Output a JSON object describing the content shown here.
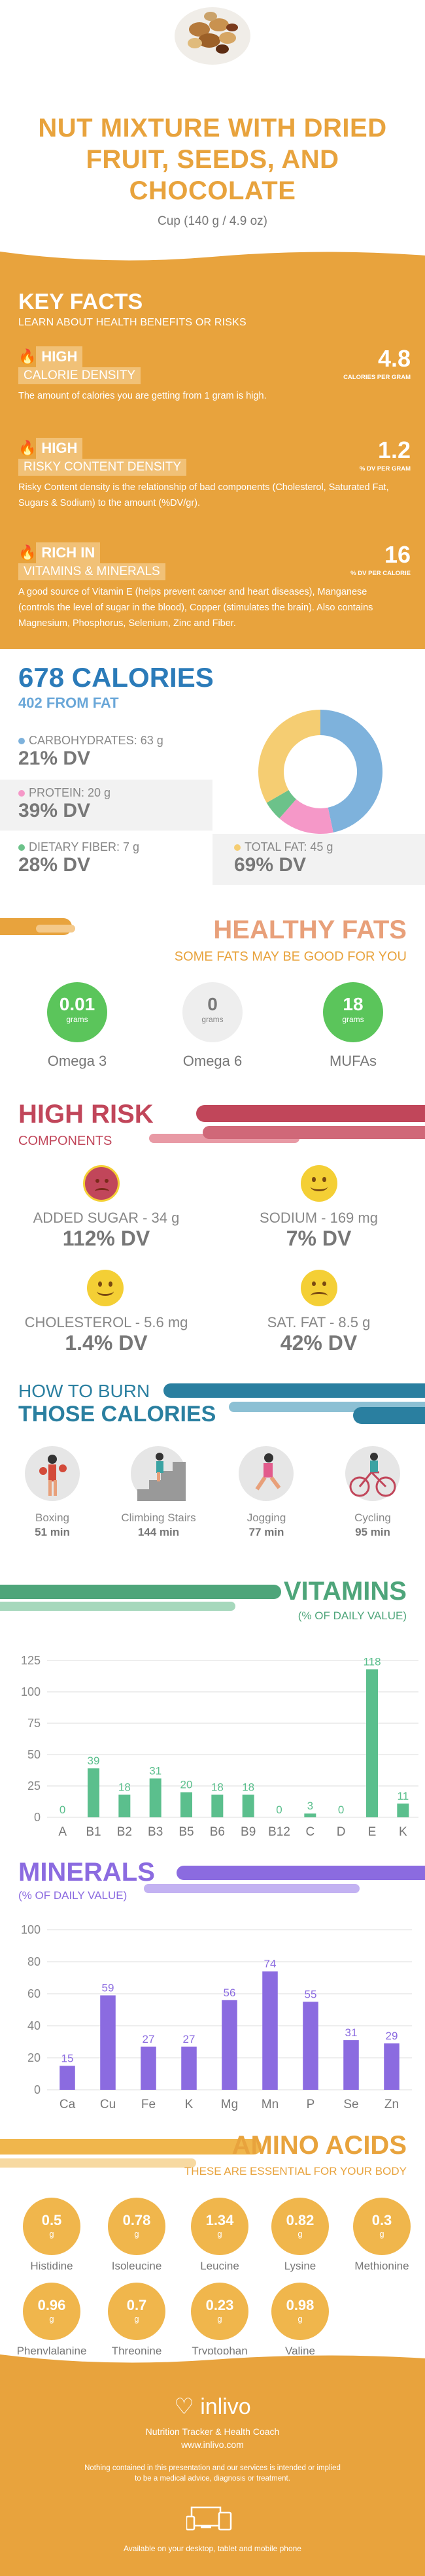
{
  "header": {
    "title_lines": [
      "NUT MIXTURE WITH DRIED",
      "FRUIT, SEEDS, AND",
      "CHOCOLATE"
    ],
    "serving": "Cup (140 g / 4.9 oz)"
  },
  "key_facts": {
    "title": "KEY FACTS",
    "subtitle": "LEARN ABOUT HEALTH BENEFITS OR RISKS",
    "items": [
      {
        "level": "HIGH",
        "label": "CALORIE DENSITY",
        "desc": "The amount of calories you are getting from 1 gram is high.",
        "value": "4.8",
        "unit": "CALORIES PER GRAM"
      },
      {
        "level": "HIGH",
        "label": "RISKY CONTENT DENSITY",
        "desc": "Risky Content density is the relationship of bad components (Cholesterol, Saturated Fat, Sugars & Sodium) to the amount (%DV/gr).",
        "value": "1.2",
        "unit": "% DV PER GRAM"
      },
      {
        "level": "RICH  IN",
        "label": "VITAMINS & MINERALS",
        "desc": "A good source of Vitamin E (helps prevent cancer and heart diseases), Manganese (controls the level of sugar in the blood), Copper (stimulates the brain). Also contains Magnesium, Phosphorus, Selenium, Zinc and Fiber.",
        "value": "16",
        "unit": "% DV PER CALORIE"
      }
    ]
  },
  "calories": {
    "title": "678 CALORIES",
    "from_fat": "402 FROM FAT",
    "carbs": {
      "label": "CARBOHYDRATES: 63 g",
      "dv": "21% DV",
      "color": "#7eb2dc"
    },
    "protein": {
      "label": "PROTEIN: 20 g",
      "dv": "39% DV",
      "color": "#f598c8"
    },
    "fiber": {
      "label": "DIETARY FIBER: 7 g",
      "dv": "28% DV",
      "color": "#6cc28a"
    },
    "fat": {
      "label": "TOTAL FAT: 45 g",
      "dv": "69% DV",
      "color": "#f5cd72"
    },
    "donut": [
      {
        "name": "carbs",
        "value": 63,
        "color": "#7eb2dc"
      },
      {
        "name": "protein",
        "value": 20,
        "color": "#f598c8"
      },
      {
        "name": "fiber",
        "value": 7,
        "color": "#6cc28a"
      },
      {
        "name": "fat",
        "value": 45,
        "color": "#f5cd72"
      }
    ]
  },
  "healthy_fats": {
    "title": "HEALTHY FATS",
    "subtitle": "SOME FATS MAY BE GOOD FOR YOU",
    "items": [
      {
        "value": "0.01",
        "unit": "grams",
        "name": "Omega 3",
        "active": true
      },
      {
        "value": "0",
        "unit": "grams",
        "name": "Omega 6",
        "active": false
      },
      {
        "value": "18",
        "unit": "grams",
        "name": "MUFAs",
        "active": true
      }
    ]
  },
  "risk": {
    "title": "HIGH RISK",
    "subtitle": "COMPONENTS",
    "items": [
      {
        "label": "ADDED SUGAR - 34 g",
        "dv": "112% DV",
        "face": "sad-red"
      },
      {
        "label": "SODIUM - 169 mg",
        "dv": "7% DV",
        "face": "happy"
      },
      {
        "label": "CHOLESTEROL - 5.6 mg",
        "dv": "1.4% DV",
        "face": "happy"
      },
      {
        "label": "SAT. FAT - 8.5 g",
        "dv": "42% DV",
        "face": "sad"
      }
    ]
  },
  "burn": {
    "title1": "HOW TO BURN",
    "title2": "THOSE CALORIES",
    "items": [
      {
        "name": "Boxing",
        "val": "51 min",
        "icon": "boxing-icon"
      },
      {
        "name": "Climbing Stairs",
        "val": "144 min",
        "icon": "stairs-icon"
      },
      {
        "name": "Jogging",
        "val": "77 min",
        "icon": "jogging-icon"
      },
      {
        "name": "Cycling",
        "val": "95 min",
        "icon": "cycling-icon"
      }
    ]
  },
  "vitamins": {
    "title": "VITAMINS",
    "subtitle": "(% OF DAILY VALUE)"
  },
  "minerals": {
    "title": "MINERALS",
    "subtitle": "(% OF DAILY VALUE)"
  },
  "amino": {
    "title": "AMINO ACIDS",
    "subtitle": "THESE ARE ESSENTIAL FOR YOUR BODY",
    "items": [
      {
        "v": "0.5",
        "n": "Histidine"
      },
      {
        "v": "0.78",
        "n": "Isoleucine"
      },
      {
        "v": "1.34",
        "n": "Leucine"
      },
      {
        "v": "0.82",
        "n": "Lysine"
      },
      {
        "v": "0.3",
        "n": "Methionine"
      },
      {
        "v": "0.96",
        "n": "Phenylalanine"
      },
      {
        "v": "0.7",
        "n": "Threonine"
      },
      {
        "v": "0.23",
        "n": "Tryptophan"
      },
      {
        "v": "0.98",
        "n": "Valine"
      }
    ],
    "unit": "g"
  },
  "footer": {
    "brand": "inlivo",
    "tagline": "Nutrition Tracker & Health Coach",
    "url": "www.inlivo.com",
    "disclaimer1": "Nothing contained in this presentation and our services is intended or implied",
    "disclaimer2": "to be a medical advice, diagnosis or treatment.",
    "available": "Available on your desktop, tablet and mobile phone"
  },
  "chart_data": [
    {
      "type": "bar",
      "title": "VITAMINS",
      "subtitle": "(% OF DAILY VALUE)",
      "categories": [
        "A",
        "B1",
        "B2",
        "B3",
        "B5",
        "B6",
        "B9",
        "B12",
        "C",
        "D",
        "E",
        "K"
      ],
      "values": [
        0,
        39,
        18,
        31,
        20,
        18,
        18,
        0,
        3,
        0,
        118,
        11
      ],
      "ylim": [
        0,
        125
      ],
      "yticks": [
        0,
        25,
        50,
        75,
        100,
        125
      ],
      "color": "#5bbf8d"
    },
    {
      "type": "bar",
      "title": "MINERALS",
      "subtitle": "(% OF DAILY VALUE)",
      "categories": [
        "Ca",
        "Cu",
        "Fe",
        "K",
        "Mg",
        "Mn",
        "P",
        "Se",
        "Zn"
      ],
      "values": [
        15,
        59,
        27,
        27,
        56,
        74,
        55,
        31,
        29
      ],
      "ylim": [
        0,
        100
      ],
      "yticks": [
        0,
        20,
        40,
        60,
        80,
        100
      ],
      "color": "#8b6be0"
    }
  ]
}
